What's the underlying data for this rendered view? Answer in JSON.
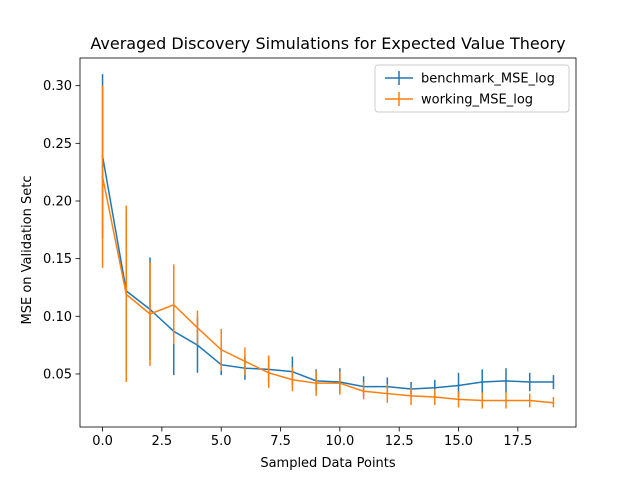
{
  "chart_data": {
    "type": "line",
    "title": "Averaged Discovery Simulations for Expected Value Theory",
    "xlabel": "Sampled Data Points",
    "ylabel": "MSE on Validation Setc",
    "xlim": [
      -0.95,
      19.95
    ],
    "ylim": [
      0.004,
      0.324
    ],
    "xticks": [
      0.0,
      2.5,
      5.0,
      7.5,
      10.0,
      12.5,
      15.0,
      17.5
    ],
    "xtick_labels": [
      "0.0",
      "2.5",
      "5.0",
      "7.5",
      "10.0",
      "12.5",
      "15.0",
      "17.5"
    ],
    "yticks": [
      0.05,
      0.1,
      0.15,
      0.2,
      0.25,
      0.3
    ],
    "ytick_labels": [
      "0.05",
      "0.10",
      "0.15",
      "0.20",
      "0.25",
      "0.30"
    ],
    "grid": false,
    "legend": "top-right",
    "x": [
      0,
      1,
      2,
      3,
      4,
      5,
      6,
      7,
      8,
      9,
      10,
      11,
      12,
      13,
      14,
      15,
      16,
      17,
      18,
      19
    ],
    "series": [
      {
        "name": "benchmark_MSE_log",
        "color": "#1f77b4",
        "values": [
          0.239,
          0.122,
          0.106,
          0.087,
          0.075,
          0.058,
          0.055,
          0.054,
          0.052,
          0.044,
          0.043,
          0.039,
          0.039,
          0.037,
          0.038,
          0.04,
          0.043,
          0.044,
          0.043,
          0.043
        ],
        "lower": [
          0.168,
          0.052,
          0.062,
          0.049,
          0.051,
          0.049,
          0.045,
          0.043,
          0.04,
          0.035,
          0.034,
          0.031,
          0.032,
          0.032,
          0.03,
          0.03,
          0.033,
          0.034,
          0.035,
          0.037
        ],
        "upper": [
          0.31,
          0.192,
          0.151,
          0.125,
          0.099,
          0.067,
          0.065,
          0.066,
          0.065,
          0.054,
          0.055,
          0.048,
          0.047,
          0.043,
          0.045,
          0.051,
          0.054,
          0.055,
          0.051,
          0.049
        ]
      },
      {
        "name": "working_MSE_log",
        "color": "#ff7f0e",
        "values": [
          0.221,
          0.119,
          0.102,
          0.11,
          0.09,
          0.071,
          0.061,
          0.051,
          0.045,
          0.042,
          0.042,
          0.035,
          0.033,
          0.031,
          0.03,
          0.028,
          0.027,
          0.027,
          0.027,
          0.025
        ],
        "lower": [
          0.142,
          0.043,
          0.057,
          0.076,
          0.075,
          0.053,
          0.049,
          0.038,
          0.035,
          0.031,
          0.032,
          0.028,
          0.025,
          0.023,
          0.023,
          0.021,
          0.02,
          0.02,
          0.021,
          0.021
        ],
        "upper": [
          0.3,
          0.196,
          0.147,
          0.145,
          0.105,
          0.089,
          0.073,
          0.066,
          0.056,
          0.053,
          0.052,
          0.043,
          0.041,
          0.038,
          0.037,
          0.035,
          0.034,
          0.034,
          0.033,
          0.03
        ]
      }
    ]
  }
}
